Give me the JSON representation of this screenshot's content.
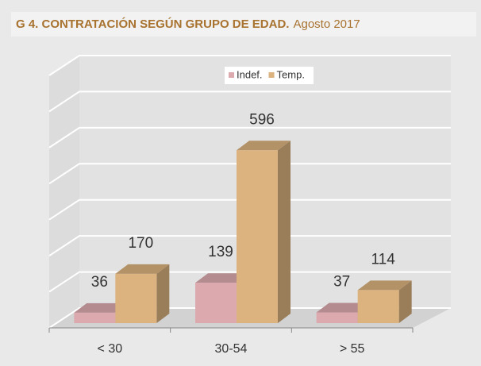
{
  "chart_data": {
    "type": "bar3d",
    "title": "G 4. CONTRATACIÓN  SEGÚN GRUPO DE EDAD.",
    "subtitle": "Agosto 2017",
    "categories": [
      "< 30",
      "30-54",
      "> 55"
    ],
    "series": [
      {
        "name": "Indef.",
        "color": "#dcaaae",
        "values": [
          36,
          139,
          37
        ]
      },
      {
        "name": "Temp.",
        "color": "#dcb27f",
        "values": [
          170,
          596,
          114
        ]
      }
    ],
    "ylim": [
      0,
      700
    ],
    "yticks": [
      0,
      100,
      200,
      300,
      400,
      500,
      600,
      700
    ],
    "grid": true,
    "legend": "top"
  }
}
